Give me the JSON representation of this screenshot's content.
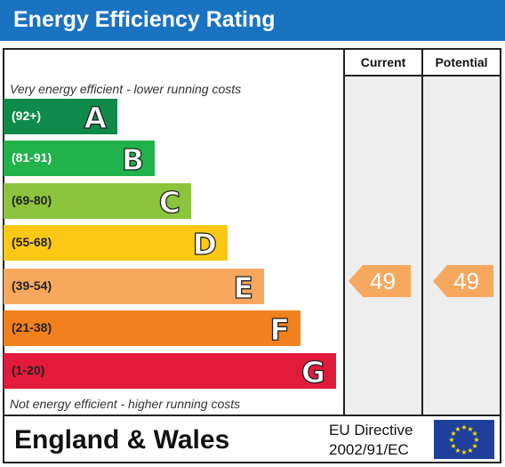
{
  "header": {
    "title": "Energy Efficiency Rating"
  },
  "columns": {
    "current": "Current",
    "potential": "Potential"
  },
  "notes": {
    "top": "Very energy efficient - lower running costs",
    "bottom": "Not energy efficient - higher running costs"
  },
  "bands": [
    {
      "range": "(92+)",
      "letter": "A",
      "color": "#108a4a",
      "range_color": "#ffffff"
    },
    {
      "range": "(81-91)",
      "letter": "B",
      "color": "#21b24b",
      "range_color": "#ffffff"
    },
    {
      "range": "(69-80)",
      "letter": "C",
      "color": "#8cc43d",
      "range_color": "#222222"
    },
    {
      "range": "(55-68)",
      "letter": "D",
      "color": "#fcc816",
      "range_color": "#222222"
    },
    {
      "range": "(39-54)",
      "letter": "E",
      "color": "#f7a85f",
      "range_color": "#222222"
    },
    {
      "range": "(21-38)",
      "letter": "F",
      "color": "#f1801d",
      "range_color": "#222222"
    },
    {
      "range": "(1-20)",
      "letter": "G",
      "color": "#e21b3c",
      "range_color": "#222222"
    }
  ],
  "ratings": {
    "current": "49",
    "potential": "49",
    "arrow_color": "#f7a85f"
  },
  "footer": {
    "region": "England & Wales",
    "directive_line1": "EU Directive",
    "directive_line2": "2002/91/EC",
    "flag_color": "#1f3f9a",
    "star_color": "#ffdd00"
  }
}
